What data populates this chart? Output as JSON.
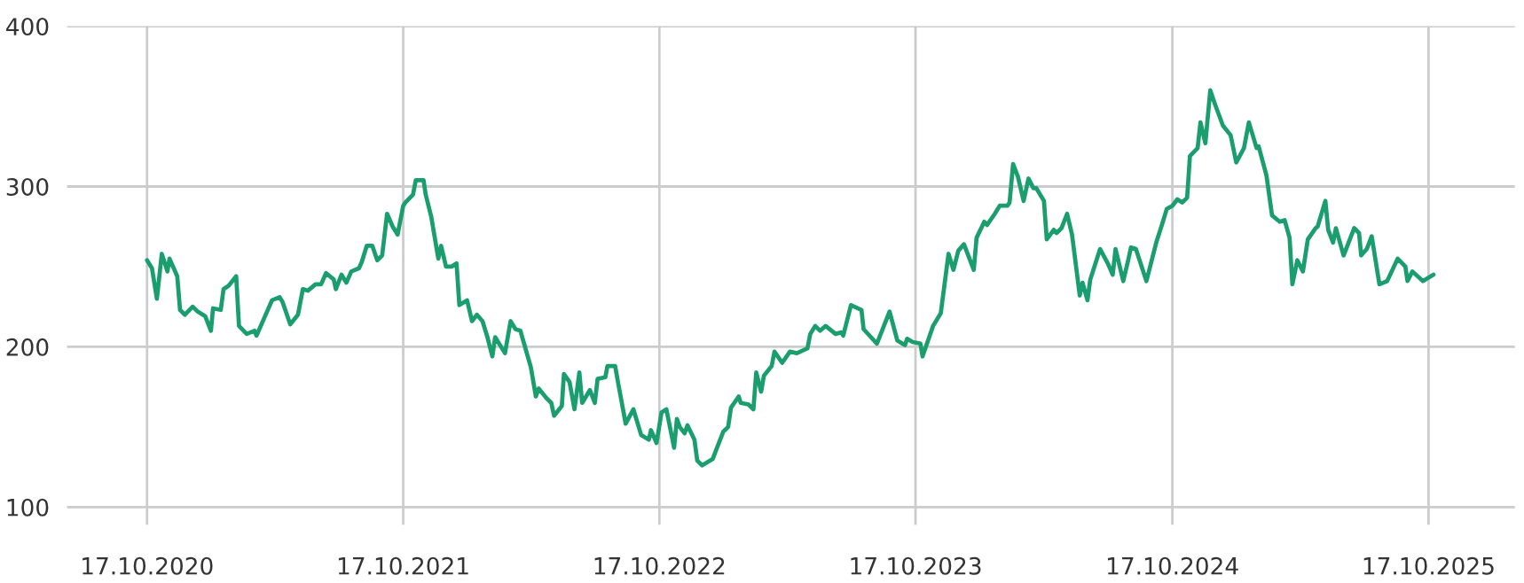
{
  "chart_data": {
    "type": "line",
    "x": [
      "2020-10-17",
      "2020-10-24",
      "2020-10-31",
      "2020-11-07",
      "2020-11-15",
      "2020-11-18",
      "2020-11-29",
      "2020-12-03",
      "2020-12-10",
      "2020-12-21",
      "2020-12-28",
      "2021-01-08",
      "2021-01-16",
      "2021-01-19",
      "2021-01-30",
      "2021-02-03",
      "2021-02-10",
      "2021-02-21",
      "2021-02-25",
      "2021-03-08",
      "2021-03-19",
      "2021-03-22",
      "2021-04-02",
      "2021-04-13",
      "2021-04-24",
      "2021-04-28",
      "2021-05-09",
      "2021-05-20",
      "2021-05-27",
      "2021-06-03",
      "2021-06-14",
      "2021-06-22",
      "2021-06-29",
      "2021-07-10",
      "2021-07-13",
      "2021-07-21",
      "2021-07-28",
      "2021-08-04",
      "2021-08-15",
      "2021-08-19",
      "2021-08-26",
      "2021-09-03",
      "2021-09-10",
      "2021-09-17",
      "2021-09-24",
      "2021-10-02",
      "2021-10-09",
      "2021-10-17",
      "2021-10-20",
      "2021-10-31",
      "2021-11-04",
      "2021-11-15",
      "2021-11-18",
      "2021-11-26",
      "2021-12-06",
      "2021-12-10",
      "2021-12-17",
      "2021-12-25",
      "2022-01-01",
      "2022-01-05",
      "2022-01-16",
      "2022-01-23",
      "2022-01-30",
      "2022-02-07",
      "2022-02-14",
      "2022-02-21",
      "2022-02-25",
      "2022-03-11",
      "2022-03-19",
      "2022-03-26",
      "2022-04-02",
      "2022-04-17",
      "2022-04-24",
      "2022-04-28",
      "2022-05-09",
      "2022-05-16",
      "2022-05-20",
      "2022-05-31",
      "2022-06-03",
      "2022-06-11",
      "2022-06-18",
      "2022-06-25",
      "2022-06-29",
      "2022-07-10",
      "2022-07-17",
      "2022-07-21",
      "2022-08-01",
      "2022-08-04",
      "2022-08-15",
      "2022-08-19",
      "2022-08-30",
      "2022-09-10",
      "2022-09-21",
      "2022-10-02",
      "2022-10-05",
      "2022-10-13",
      "2022-10-20",
      "2022-10-27",
      "2022-11-07",
      "2022-11-11",
      "2022-11-15",
      "2022-11-22",
      "2022-11-26",
      "2022-12-06",
      "2022-12-10",
      "2022-12-17",
      "2023-01-01",
      "2023-01-08",
      "2023-01-16",
      "2023-01-23",
      "2023-01-27",
      "2023-02-07",
      "2023-02-10",
      "2023-02-21",
      "2023-02-28",
      "2023-03-04",
      "2023-03-11",
      "2023-03-15",
      "2023-03-26",
      "2023-03-30",
      "2023-04-10",
      "2023-04-21",
      "2023-05-01",
      "2023-05-16",
      "2023-05-20",
      "2023-05-27",
      "2023-06-03",
      "2023-06-11",
      "2023-06-25",
      "2023-07-03",
      "2023-07-06",
      "2023-07-17",
      "2023-08-01",
      "2023-08-04",
      "2023-08-23",
      "2023-09-10",
      "2023-09-21",
      "2023-10-02",
      "2023-10-05",
      "2023-10-13",
      "2023-10-24",
      "2023-10-27",
      "2023-11-11",
      "2023-11-22",
      "2023-12-03",
      "2023-12-10",
      "2023-12-17",
      "2023-12-25",
      "2024-01-08",
      "2024-01-12",
      "2024-01-23",
      "2024-01-27",
      "2024-02-07",
      "2024-02-14",
      "2024-02-25",
      "2024-02-28",
      "2024-03-04",
      "2024-03-11",
      "2024-03-19",
      "2024-03-26",
      "2024-04-02",
      "2024-04-06",
      "2024-04-17",
      "2024-04-21",
      "2024-05-01",
      "2024-05-05",
      "2024-05-12",
      "2024-05-20",
      "2024-05-27",
      "2024-06-07",
      "2024-06-11",
      "2024-06-18",
      "2024-06-22",
      "2024-07-06",
      "2024-07-17",
      "2024-07-24",
      "2024-07-28",
      "2024-08-08",
      "2024-08-15",
      "2024-08-19",
      "2024-08-26",
      "2024-09-10",
      "2024-09-24",
      "2024-10-02",
      "2024-10-09",
      "2024-10-17",
      "2024-10-24",
      "2024-10-31",
      "2024-11-07",
      "2024-11-11",
      "2024-11-22",
      "2024-11-26",
      "2024-12-03",
      "2024-12-10",
      "2024-12-17",
      "2024-12-28",
      "2025-01-08",
      "2025-01-16",
      "2025-01-27",
      "2025-02-03",
      "2025-02-14",
      "2025-02-17",
      "2025-02-28",
      "2025-03-08",
      "2025-03-19",
      "2025-03-26",
      "2025-04-02",
      "2025-04-06",
      "2025-04-13",
      "2025-04-21",
      "2025-04-28",
      "2025-05-09",
      "2025-05-12",
      "2025-05-23",
      "2025-05-27",
      "2025-06-03",
      "2025-06-07",
      "2025-06-18",
      "2025-07-03",
      "2025-07-10",
      "2025-07-13",
      "2025-07-21",
      "2025-07-28",
      "2025-08-08",
      "2025-08-19",
      "2025-09-03",
      "2025-09-14",
      "2025-09-17",
      "2025-09-24",
      "2025-10-09",
      "2025-10-24"
    ],
    "series": [
      {
        "color": "#1b9e6e",
        "values": [
          254,
          249,
          230,
          258,
          247,
          255,
          244,
          223,
          220,
          225,
          222,
          219,
          210,
          224,
          223,
          236,
          238,
          244,
          213,
          208,
          210,
          207,
          218,
          229,
          231,
          228,
          214,
          220,
          236,
          235,
          239,
          239,
          246,
          242,
          236,
          245,
          240,
          247,
          249,
          253,
          263,
          263,
          254,
          257,
          283,
          275,
          270,
          288,
          290,
          295,
          304,
          304,
          295,
          281,
          255,
          263,
          250,
          250,
          252,
          226,
          229,
          216,
          220,
          216,
          206,
          194,
          206,
          196,
          216,
          211,
          210,
          187,
          169,
          174,
          168,
          165,
          157,
          163,
          183,
          178,
          161,
          184,
          165,
          173,
          165,
          180,
          181,
          188,
          188,
          178,
          152,
          161,
          145,
          142,
          148,
          140,
          159,
          161,
          137,
          155,
          150,
          146,
          151,
          142,
          129,
          126,
          130,
          138,
          147,
          150,
          162,
          169,
          165,
          164,
          161,
          184,
          172,
          182,
          188,
          197,
          190,
          197,
          196,
          199,
          208,
          213,
          210,
          213,
          208,
          209,
          207,
          226,
          223,
          211,
          202,
          222,
          204,
          201,
          205,
          203,
          202,
          194,
          213,
          221,
          258,
          248,
          260,
          264,
          248,
          268,
          278,
          276,
          283,
          288,
          288,
          290,
          314,
          306,
          291,
          305,
          299,
          299,
          291,
          267,
          273,
          271,
          274,
          283,
          270,
          232,
          240,
          229,
          242,
          261,
          252,
          245,
          261,
          241,
          254,
          262,
          261,
          241,
          265,
          276,
          286,
          288,
          292,
          290,
          293,
          319,
          324,
          340,
          327,
          360,
          351,
          338,
          332,
          315,
          324,
          340,
          324,
          325,
          307,
          282,
          278,
          279,
          268,
          239,
          254,
          247,
          267,
          274,
          275,
          291,
          273,
          265,
          274,
          257,
          274,
          271,
          257,
          261,
          269,
          239,
          241,
          255,
          250,
          241,
          247,
          241,
          245
        ]
      }
    ],
    "xlim": [
      "2020-06-25",
      "2026-02-17"
    ],
    "ylim": [
      89,
      400
    ],
    "xticks": [
      {
        "value": "2020-10-17",
        "label": "17.10.2020"
      },
      {
        "value": "2021-10-17",
        "label": "17.10.2021"
      },
      {
        "value": "2022-10-17",
        "label": "17.10.2022"
      },
      {
        "value": "2023-10-17",
        "label": "17.10.2023"
      },
      {
        "value": "2024-10-17",
        "label": "17.10.2024"
      },
      {
        "value": "2025-10-17",
        "label": "17.10.2025"
      }
    ],
    "yticks": [
      100,
      200,
      300,
      400
    ],
    "grid": true
  }
}
